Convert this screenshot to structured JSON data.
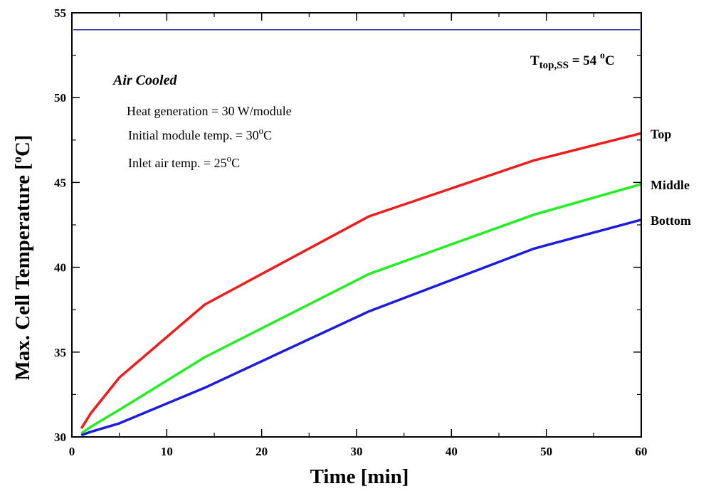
{
  "chart_data": {
    "type": "line",
    "xlabel": "Time [min]",
    "ylabel_main": "Max. Cell Temperature [",
    "ylabel_sup": "o",
    "ylabel_end": "C]",
    "xlim": [
      0,
      60
    ],
    "ylim": [
      30,
      55
    ],
    "xticks": [
      0,
      10,
      20,
      30,
      40,
      50,
      60
    ],
    "yticks": [
      30,
      35,
      40,
      45,
      50,
      55
    ],
    "grid": false,
    "series": [
      {
        "name": "Top",
        "color": "#ee1c1c",
        "x": [
          1,
          2,
          5,
          14,
          31.3,
          48.7,
          60
        ],
        "y": [
          30.5,
          31.4,
          33.5,
          37.8,
          43.0,
          46.3,
          47.9
        ]
      },
      {
        "name": "Middle",
        "color": "#22ee22",
        "x": [
          1,
          2,
          5,
          14,
          31.3,
          48.7,
          60
        ],
        "y": [
          30.2,
          30.6,
          31.6,
          34.7,
          39.6,
          43.1,
          44.9
        ]
      },
      {
        "name": "Bottom",
        "color": "#1c1cdd",
        "x": [
          1,
          2,
          5,
          14,
          31.3,
          48.7,
          60
        ],
        "y": [
          30.1,
          30.3,
          30.8,
          32.9,
          37.4,
          41.1,
          42.8
        ]
      }
    ],
    "reference_line": {
      "y": 54,
      "color": "#1c1c8c"
    },
    "annotations": {
      "steady_state": {
        "T": "T",
        "sub": "top,SS",
        "eq": " = 54 ",
        "sup": "o",
        "unit": "C"
      },
      "condition": "Air Cooled",
      "heat_generation": "Heat generation = 30 W/module",
      "initial_temp": {
        "text": "Initial module temp. = 30",
        "sup": "o",
        "unit": "C"
      },
      "inlet_temp": {
        "text": "Inlet air temp. = 25",
        "sup": "o",
        "unit": "C"
      }
    }
  }
}
